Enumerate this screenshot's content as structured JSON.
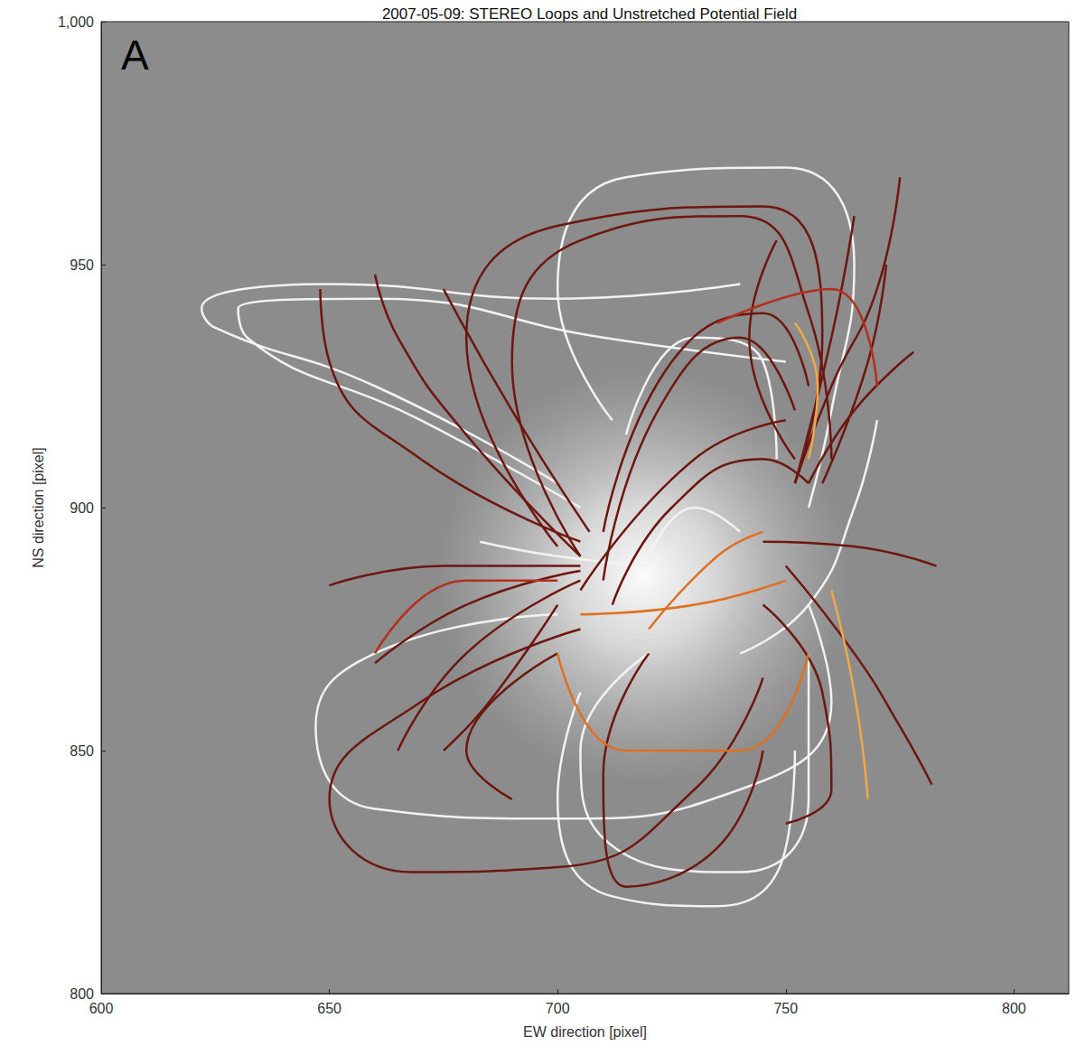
{
  "chart_data": {
    "type": "line",
    "title": "2007-05-09: STEREO Loops and Unstretched Potential Field",
    "panel_label": "A",
    "x_label": "EW direction [pixel]",
    "y_label": "NS direction [pixel]",
    "xlim": [
      600,
      812
    ],
    "ylim": [
      800,
      1000
    ],
    "xticks": [
      600,
      650,
      700,
      750,
      800
    ],
    "yticks": [
      800,
      850,
      900,
      950,
      1000
    ],
    "grid": false,
    "series": [
      {
        "color": "#f2f2f2",
        "line_style": "solid",
        "values": [
          [
            [
              700,
              905
            ],
            [
              660,
              925
            ],
            [
              625,
              937
            ],
            [
              622,
              941
            ],
            [
              650,
              946
            ],
            [
              700,
              943
            ],
            [
              740,
              946
            ]
          ],
          [
            [
              705,
              900
            ],
            [
              670,
              918
            ],
            [
              632,
              935
            ],
            [
              630,
              941
            ],
            [
              660,
              943
            ],
            [
              710,
              935
            ],
            [
              750,
              930
            ]
          ],
          [
            [
              712,
              918
            ],
            [
              700,
              945
            ],
            [
              715,
              968
            ],
            [
              750,
              970
            ],
            [
              765,
              950
            ],
            [
              760,
              920
            ],
            [
              755,
              900
            ]
          ],
          [
            [
              700,
              878
            ],
            [
              660,
              870
            ],
            [
              647,
              855
            ],
            [
              660,
              838
            ],
            [
              700,
              836
            ],
            [
              740,
              842
            ],
            [
              760,
              860
            ],
            [
              755,
              880
            ]
          ],
          [
            [
              705,
              862
            ],
            [
              700,
              840
            ],
            [
              712,
              820
            ],
            [
              735,
              818
            ],
            [
              750,
              830
            ],
            [
              752,
              850
            ]
          ],
          [
            [
              720,
              870
            ],
            [
              705,
              850
            ],
            [
              710,
              832
            ],
            [
              740,
              825
            ],
            [
              755,
              840
            ],
            [
              755,
              870
            ]
          ],
          [
            [
              683,
              893
            ],
            [
              700,
              890
            ],
            [
              720,
              888
            ]
          ],
          [
            [
              720,
              890
            ],
            [
              730,
              900
            ],
            [
              740,
              895
            ]
          ],
          [
            [
              715,
              915
            ],
            [
              730,
              935
            ],
            [
              745,
              930
            ],
            [
              748,
              910
            ]
          ],
          [
            [
              740,
              870
            ],
            [
              755,
              880
            ],
            [
              765,
              900
            ],
            [
              770,
              918
            ]
          ]
        ]
      },
      {
        "color": "#6e1610",
        "line_style": "solid",
        "values": [
          [
            [
              705,
              890
            ],
            [
              690,
              930
            ],
            [
              705,
              955
            ],
            [
              740,
              960
            ],
            [
              755,
              940
            ],
            [
              760,
              910
            ]
          ],
          [
            [
              700,
              892
            ],
            [
              680,
              935
            ],
            [
              700,
              958
            ],
            [
              745,
              962
            ],
            [
              758,
              935
            ],
            [
              752,
              905
            ]
          ],
          [
            [
              705,
              890
            ],
            [
              680,
              915
            ],
            [
              665,
              935
            ],
            [
              660,
              948
            ]
          ],
          [
            [
              705,
              893
            ],
            [
              670,
              910
            ],
            [
              650,
              930
            ],
            [
              648,
              945
            ]
          ],
          [
            [
              707,
              895
            ],
            [
              690,
              920
            ],
            [
              675,
              945
            ]
          ],
          [
            [
              752,
              905
            ],
            [
              760,
              925
            ],
            [
              770,
              945
            ],
            [
              775,
              968
            ]
          ],
          [
            [
              755,
              905
            ],
            [
              765,
              920
            ],
            [
              778,
              932
            ]
          ],
          [
            [
              752,
              910
            ],
            [
              742,
              935
            ],
            [
              748,
              955
            ]
          ],
          [
            [
              758,
              905
            ],
            [
              768,
              930
            ],
            [
              772,
              950
            ]
          ],
          [
            [
              752,
              905
            ],
            [
              760,
              935
            ],
            [
              765,
              960
            ]
          ],
          [
            [
              745,
              893
            ],
            [
              765,
              892
            ],
            [
              783,
              888
            ]
          ],
          [
            [
              750,
              888
            ],
            [
              765,
              870
            ],
            [
              775,
              855
            ],
            [
              782,
              843
            ]
          ],
          [
            [
              705,
              887
            ],
            [
              680,
              880
            ],
            [
              660,
              868
            ]
          ],
          [
            [
              705,
              885
            ],
            [
              680,
              870
            ],
            [
              665,
              850
            ]
          ],
          [
            [
              700,
              880
            ],
            [
              685,
              860
            ],
            [
              675,
              850
            ]
          ],
          [
            [
              705,
              888
            ],
            [
              675,
              888
            ],
            [
              650,
              884
            ]
          ],
          [
            [
              705,
              875
            ],
            [
              670,
              860
            ],
            [
              650,
              840
            ],
            [
              668,
              825
            ],
            [
              700,
              826
            ],
            [
              730,
              842
            ],
            [
              745,
              865
            ]
          ],
          [
            [
              700,
              870
            ],
            [
              680,
              850
            ],
            [
              690,
              840
            ]
          ],
          [
            [
              720,
              870
            ],
            [
              710,
              845
            ],
            [
              715,
              822
            ],
            [
              735,
              830
            ],
            [
              745,
              850
            ]
          ],
          [
            [
              712,
              880
            ],
            [
              725,
              900
            ],
            [
              745,
              910
            ],
            [
              755,
              905
            ]
          ],
          [
            [
              705,
              883
            ],
            [
              730,
              910
            ],
            [
              750,
              918
            ]
          ],
          [
            [
              710,
              885
            ],
            [
              722,
              920
            ],
            [
              740,
              935
            ],
            [
              752,
              920
            ]
          ],
          [
            [
              745,
              880
            ],
            [
              758,
              862
            ],
            [
              760,
              842
            ],
            [
              750,
              835
            ]
          ],
          [
            [
              710,
              895
            ],
            [
              725,
              930
            ],
            [
              745,
              940
            ],
            [
              755,
              925
            ]
          ]
        ]
      },
      {
        "color": "#b3301e",
        "line_style": "solid",
        "values": [
          [
            [
              660,
              870
            ],
            [
              680,
              885
            ],
            [
              700,
              885
            ]
          ],
          [
            [
              735,
              938
            ],
            [
              760,
              945
            ],
            [
              770,
              925
            ]
          ]
        ]
      },
      {
        "color": "#e07020",
        "line_style": "solid",
        "values": [
          [
            [
              700,
              870
            ],
            [
              715,
              850
            ],
            [
              740,
              850
            ],
            [
              755,
              870
            ]
          ],
          [
            [
              705,
              878
            ],
            [
              730,
              880
            ],
            [
              750,
              885
            ]
          ],
          [
            [
              720,
              875
            ],
            [
              735,
              890
            ],
            [
              745,
              895
            ]
          ]
        ]
      },
      {
        "color": "#f0a848",
        "line_style": "solid",
        "values": [
          [
            [
              760,
              883
            ],
            [
              765,
              862
            ],
            [
              768,
              840
            ]
          ],
          [
            [
              752,
              938
            ],
            [
              757,
              925
            ],
            [
              755,
              910
            ]
          ]
        ]
      }
    ]
  }
}
